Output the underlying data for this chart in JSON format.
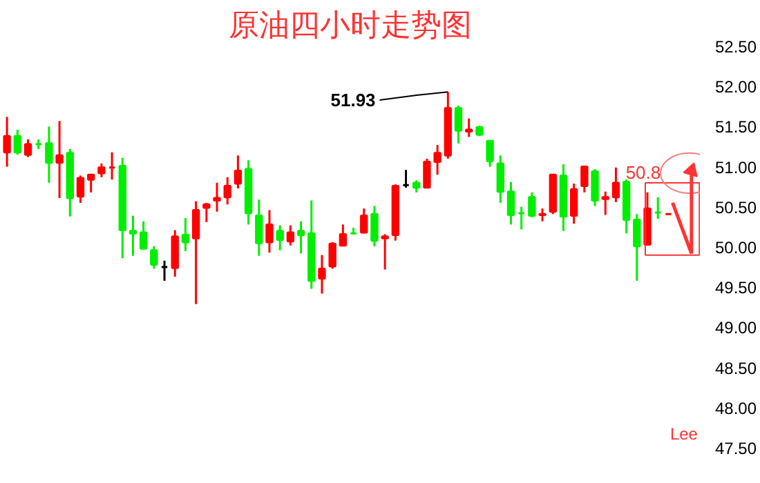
{
  "chart_data": {
    "type": "candlestick",
    "title": "原油四小时走势图",
    "categories": [
      null,
      null,
      null,
      null,
      null,
      null,
      null,
      null,
      null,
      null,
      null,
      null,
      null,
      null,
      null,
      null,
      null,
      null,
      null,
      null,
      null,
      null,
      null,
      null,
      null,
      null,
      null,
      null,
      null,
      null,
      null,
      null,
      null,
      null,
      null,
      null,
      null,
      null,
      null,
      null,
      null,
      null,
      null,
      null,
      null,
      null,
      null,
      null,
      null,
      null,
      null,
      null,
      null,
      null,
      null,
      null,
      null,
      null,
      null,
      null,
      null,
      null,
      null,
      null
    ],
    "ohlc": [
      [
        51.18,
        51.62,
        51.0,
        51.38
      ],
      [
        51.38,
        51.46,
        51.15,
        51.18
      ],
      [
        51.15,
        51.34,
        51.12,
        51.28
      ],
      [
        51.28,
        51.34,
        51.22,
        51.28
      ],
      [
        51.29,
        51.5,
        50.8,
        51.05
      ],
      [
        51.05,
        51.57,
        50.61,
        51.14
      ],
      [
        51.17,
        51.22,
        50.38,
        50.61
      ],
      [
        50.63,
        50.89,
        50.55,
        50.86
      ],
      [
        50.84,
        50.91,
        50.68,
        50.9
      ],
      [
        50.92,
        51.04,
        50.87,
        50.99
      ],
      [
        50.99,
        51.18,
        50.84,
        50.99
      ],
      [
        51.01,
        51.11,
        49.86,
        50.21
      ],
      [
        50.2,
        50.39,
        49.89,
        50.17
      ],
      [
        50.18,
        50.32,
        49.97,
        49.98
      ],
      [
        49.96,
        50.01,
        49.73,
        49.78
      ],
      [
        49.75,
        49.83,
        49.58,
        49.75
      ],
      [
        49.74,
        50.21,
        49.63,
        50.13
      ],
      [
        50.15,
        50.36,
        49.95,
        50.06
      ],
      [
        50.11,
        50.57,
        49.29,
        50.46
      ],
      [
        50.49,
        50.55,
        50.31,
        50.53
      ],
      [
        50.58,
        50.8,
        50.44,
        50.61
      ],
      [
        50.62,
        50.87,
        50.53,
        50.76
      ],
      [
        50.79,
        51.14,
        50.73,
        50.95
      ],
      [
        50.97,
        51.08,
        50.28,
        50.42
      ],
      [
        50.39,
        50.59,
        49.89,
        50.05
      ],
      [
        50.06,
        50.46,
        49.93,
        50.28
      ],
      [
        50.2,
        50.27,
        49.96,
        50.09
      ],
      [
        50.07,
        50.27,
        50.02,
        50.18
      ],
      [
        50.2,
        50.32,
        49.92,
        50.15
      ],
      [
        50.17,
        50.58,
        49.48,
        49.58
      ],
      [
        49.61,
        49.9,
        49.42,
        49.73
      ],
      [
        49.76,
        50.06,
        49.73,
        50.04
      ],
      [
        50.02,
        50.28,
        50.01,
        50.16
      ],
      [
        50.17,
        50.24,
        50.16,
        50.17
      ],
      [
        50.18,
        50.48,
        50.18,
        50.39
      ],
      [
        50.41,
        50.51,
        50.01,
        50.08
      ],
      [
        50.11,
        50.16,
        49.72,
        50.13
      ],
      [
        50.15,
        50.78,
        50.08,
        50.76
      ],
      [
        50.77,
        50.96,
        50.74,
        50.77
      ],
      [
        50.8,
        50.83,
        50.68,
        50.74
      ],
      [
        50.74,
        51.1,
        50.73,
        51.06
      ],
      [
        51.06,
        51.27,
        50.9,
        51.17
      ],
      [
        51.14,
        51.93,
        51.1,
        51.73
      ],
      [
        51.73,
        51.76,
        51.29,
        51.45
      ],
      [
        51.44,
        51.6,
        51.37,
        51.46
      ],
      [
        51.49,
        51.51,
        51.38,
        51.4
      ],
      [
        51.32,
        51.32,
        51.0,
        51.07
      ],
      [
        51.04,
        51.14,
        50.55,
        50.69
      ],
      [
        50.69,
        50.81,
        50.28,
        50.4
      ],
      [
        50.42,
        50.5,
        50.22,
        50.42
      ],
      [
        50.62,
        50.68,
        50.37,
        50.39
      ],
      [
        50.4,
        50.48,
        50.32,
        50.41
      ],
      [
        50.44,
        50.91,
        50.41,
        50.9
      ],
      [
        50.89,
        51.03,
        50.2,
        50.38
      ],
      [
        50.39,
        50.79,
        50.29,
        50.72
      ],
      [
        50.76,
        51.01,
        50.68,
        51.0
      ],
      [
        50.94,
        50.97,
        50.51,
        50.58
      ],
      [
        50.6,
        50.69,
        50.4,
        50.62
      ],
      [
        50.62,
        50.99,
        50.56,
        50.8
      ],
      [
        50.81,
        50.84,
        50.17,
        50.34
      ],
      [
        50.34,
        50.41,
        49.58,
        50.01
      ],
      [
        50.03,
        50.68,
        50.02,
        50.48
      ],
      [
        50.43,
        50.62,
        50.35,
        50.43
      ],
      [
        50.41,
        50.42,
        50.4,
        50.41
      ]
    ],
    "colors": [
      "#ff0000",
      "#00ee00",
      "#ff0000",
      "#00ee00",
      "#00ee00",
      "#ff0000",
      "#00ee00",
      "#ff0000",
      "#ff0000",
      "#ff0000",
      "#ff0000",
      "#00ee00",
      "#00ee00",
      "#00ee00",
      "#00ee00",
      "#000000",
      "#ff0000",
      "#00ee00",
      "#ff0000",
      "#ff0000",
      "#ff0000",
      "#ff0000",
      "#ff0000",
      "#00ee00",
      "#00ee00",
      "#ff0000",
      "#00ee00",
      "#ff0000",
      "#00ee00",
      "#00ee00",
      "#ff0000",
      "#ff0000",
      "#ff0000",
      "#00ee00",
      "#ff0000",
      "#00ee00",
      "#ff0000",
      "#ff0000",
      "#000000",
      "#00ee00",
      "#ff0000",
      "#ff0000",
      "#ff0000",
      "#00ee00",
      "#ff0000",
      "#00ee00",
      "#00ee00",
      "#00ee00",
      "#00ee00",
      "#00ee00",
      "#00ee00",
      "#ff0000",
      "#ff0000",
      "#00ee00",
      "#ff0000",
      "#ff0000",
      "#00ee00",
      "#ff0000",
      "#ff0000",
      "#00ee00",
      "#00ee00",
      "#ff0000",
      "#00ee00",
      "#ff0000"
    ],
    "ylim": [
      47.5,
      52.5
    ],
    "yticks": [
      {
        "value": 47.5,
        "label": "47.50"
      },
      {
        "value": 48.0,
        "label": "48.00"
      },
      {
        "value": 48.5,
        "label": "48.50"
      },
      {
        "value": 49.0,
        "label": "49.00"
      },
      {
        "value": 49.5,
        "label": "49.50"
      },
      {
        "value": 50.0,
        "label": "50.00"
      },
      {
        "value": 50.5,
        "label": "50.50"
      },
      {
        "value": 51.0,
        "label": "51.00"
      },
      {
        "value": 51.5,
        "label": "51.50"
      },
      {
        "value": 52.0,
        "label": "52.00"
      },
      {
        "value": 52.5,
        "label": "52.50"
      }
    ],
    "grid": false,
    "annotations": [
      "51.93",
      "50.8",
      "Lee"
    ]
  }
}
